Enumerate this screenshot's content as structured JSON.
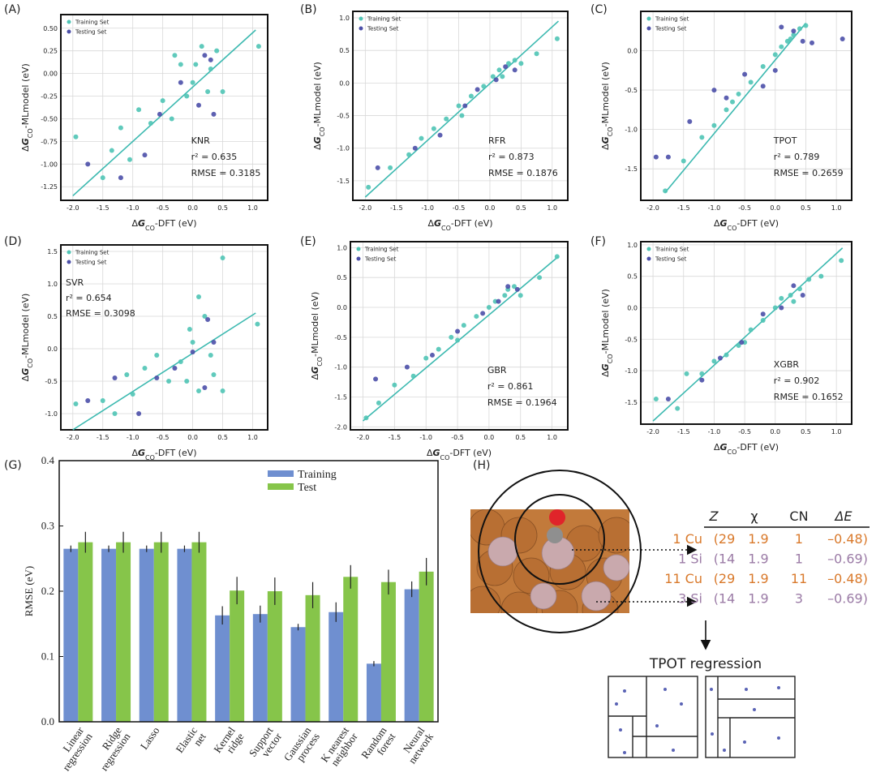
{
  "chart_data": [
    {
      "type": "scatter",
      "panel": "(A)",
      "xlabel": [
        "Δ",
        "G",
        "CO",
        "-DFT (eV)"
      ],
      "ylabel": [
        "Δ",
        "G",
        "CO",
        "-MLmodel (eV)"
      ],
      "annotations": [
        "KNR",
        "r² = 0.635",
        "RMSE = 0.3185"
      ],
      "xlim": [
        -2.2,
        1.25
      ],
      "xticks": [
        {
          "value": -2,
          "label": "-2.0"
        },
        -1.5,
        {
          "value": -1,
          "label": "-1.0"
        },
        -0.5,
        {
          "value": 0,
          "label": "0.0"
        },
        0.5,
        {
          "value": 1,
          "label": "1.0"
        }
      ],
      "ylim": [
        -1.4,
        0.65
      ],
      "yticks": [
        -1.25,
        {
          "value": -1,
          "label": "-1.00"
        },
        -0.75,
        {
          "value": -0.5,
          "label": "-0.50"
        },
        -0.25,
        {
          "value": 0,
          "label": "0.00"
        },
        0.25,
        {
          "value": 0.5,
          "label": "0.50"
        }
      ],
      "grid": true,
      "legend": "upper left",
      "fit": {
        "color": "#3cb9b0",
        "x": [
          -2.0,
          1.05
        ],
        "values": [
          -1.35,
          0.48
        ]
      },
      "series": [
        {
          "name": "Training Set",
          "color": "#4fc4b5",
          "x": [
            -1.95,
            -1.5,
            -1.35,
            -1.2,
            -1.05,
            -0.9,
            -0.7,
            -0.5,
            -0.35,
            -0.2,
            -0.1,
            0.0,
            0.05,
            0.15,
            0.25,
            0.3,
            0.4,
            0.5,
            1.1,
            -0.3
          ],
          "values": [
            -0.7,
            -1.15,
            -0.85,
            -0.6,
            -0.95,
            -0.4,
            -0.55,
            -0.3,
            -0.5,
            0.1,
            -0.25,
            -0.1,
            0.1,
            0.3,
            -0.2,
            0.05,
            0.25,
            -0.2,
            0.3,
            0.2
          ]
        },
        {
          "name": "Testing Set",
          "color": "#4b4fa8",
          "x": [
            -1.75,
            -1.2,
            -0.8,
            -0.55,
            -0.2,
            0.1,
            0.2,
            0.35,
            0.3
          ],
          "values": [
            -1.0,
            -1.15,
            -0.9,
            -0.45,
            -0.1,
            -0.35,
            0.2,
            -0.45,
            0.15
          ]
        }
      ]
    },
    {
      "type": "scatter",
      "panel": "(B)",
      "xlabel": [
        "Δ",
        "G",
        "CO",
        "-DFT (eV)"
      ],
      "ylabel": [
        "Δ",
        "G",
        "CO",
        "-MLmodel (eV)"
      ],
      "annotations": [
        "RFR",
        "r² = 0.873",
        "RMSE = 0.1876"
      ],
      "xlim": [
        -2.2,
        1.25
      ],
      "xticks": [
        {
          "value": -2,
          "label": "-2.0"
        },
        -1.5,
        {
          "value": -1,
          "label": "-1.0"
        },
        -0.5,
        {
          "value": 0,
          "label": "0.0"
        },
        0.5,
        {
          "value": 1,
          "label": "1.0"
        }
      ],
      "ylim": [
        -1.8,
        1.1
      ],
      "yticks": [
        -1.5,
        {
          "value": -1,
          "label": "-1.0"
        },
        -0.5,
        {
          "value": 0,
          "label": "0.0"
        },
        0.5,
        {
          "value": 1,
          "label": "1.0"
        }
      ],
      "grid": true,
      "legend": "upper left",
      "fit": {
        "color": "#3cb9b0",
        "x": [
          -2.0,
          1.1
        ],
        "values": [
          -1.75,
          0.95
        ]
      },
      "series": [
        {
          "name": "Training Set",
          "color": "#4fc4b5",
          "x": [
            -1.95,
            -1.6,
            -1.3,
            -1.1,
            -0.9,
            -0.7,
            -0.5,
            -0.3,
            -0.1,
            0.05,
            0.15,
            0.3,
            0.4,
            0.5,
            0.75,
            1.08,
            -0.45,
            0.2
          ],
          "values": [
            -1.6,
            -1.3,
            -1.1,
            -0.85,
            -0.7,
            -0.55,
            -0.35,
            -0.2,
            -0.05,
            0.1,
            0.2,
            0.3,
            0.35,
            0.3,
            0.45,
            0.68,
            -0.5,
            0.1
          ]
        },
        {
          "name": "Testing Set",
          "color": "#4b4fa8",
          "x": [
            -1.8,
            -1.2,
            -0.8,
            -0.4,
            -0.2,
            0.1,
            0.25,
            0.4
          ],
          "values": [
            -1.3,
            -1.0,
            -0.8,
            -0.35,
            -0.1,
            0.05,
            0.25,
            0.2
          ]
        }
      ]
    },
    {
      "type": "scatter",
      "panel": "(C)",
      "xlabel": [
        "Δ",
        "G",
        "CO",
        "-DFT (eV)"
      ],
      "ylabel": [
        "Δ",
        "G",
        "CO",
        "-MLmodel (eV)"
      ],
      "annotations": [
        "TPOT",
        "r² = 0.789",
        "RMSE = 0.2659"
      ],
      "xlim": [
        -2.2,
        1.25
      ],
      "xticks": [
        {
          "value": -2,
          "label": "-2.0"
        },
        -1.5,
        {
          "value": -1,
          "label": "-1.0"
        },
        -0.5,
        {
          "value": 0,
          "label": "0.0"
        },
        0.5,
        {
          "value": 1,
          "label": "1.0"
        }
      ],
      "ylim": [
        -1.9,
        0.5
      ],
      "yticks": [
        -1.5,
        {
          "value": -1,
          "label": "-1.0"
        },
        -0.5,
        {
          "value": 0,
          "label": "0.0"
        }
      ],
      "grid": true,
      "legend": "upper left",
      "fit": {
        "color": "#3cb9b0",
        "x": [
          -1.8,
          0.5
        ],
        "values": [
          -1.8,
          0.35
        ]
      },
      "series": [
        {
          "name": "Training Set",
          "color": "#4fc4b5",
          "x": [
            -1.8,
            -1.5,
            -1.2,
            -1.0,
            -0.8,
            -0.6,
            -0.4,
            -0.2,
            0.0,
            0.1,
            0.2,
            0.3,
            0.4,
            0.5,
            0.25,
            -0.7
          ],
          "values": [
            -1.78,
            -1.4,
            -1.1,
            -0.95,
            -0.75,
            -0.55,
            -0.4,
            -0.2,
            -0.05,
            0.05,
            0.12,
            0.2,
            0.28,
            0.32,
            0.15,
            -0.65
          ]
        },
        {
          "name": "Testing Set",
          "color": "#4b4fa8",
          "x": [
            -1.95,
            -1.75,
            -1.4,
            -1.0,
            -0.8,
            -0.5,
            -0.2,
            0.0,
            0.1,
            0.3,
            0.6,
            1.1,
            0.45
          ],
          "values": [
            -1.35,
            -1.35,
            -0.9,
            -0.5,
            -0.6,
            -0.3,
            -0.45,
            -0.25,
            0.3,
            0.25,
            0.1,
            0.15,
            0.12
          ]
        }
      ]
    },
    {
      "type": "scatter",
      "panel": "(D)",
      "xlabel": [
        "Δ",
        "G",
        "CO",
        "-DFT (eV)"
      ],
      "ylabel": [
        "Δ",
        "G",
        "CO",
        "-MLmodel (eV)"
      ],
      "annotations": [
        "SVR",
        "r² = 0.654",
        "RMSE = 0.3098"
      ],
      "xlim": [
        -2.2,
        1.25
      ],
      "xticks": [
        {
          "value": -2,
          "label": "-2.0"
        },
        -1.5,
        {
          "value": -1,
          "label": "-1.0"
        },
        -0.5,
        {
          "value": 0,
          "label": "0.0"
        },
        0.5,
        {
          "value": 1,
          "label": "1.0"
        }
      ],
      "ylim": [
        -1.25,
        1.6
      ],
      "yticks": [
        {
          "value": -1,
          "label": "-1.0"
        },
        -0.5,
        {
          "value": 0,
          "label": "0.0"
        },
        0.5,
        {
          "value": 1,
          "label": "1.0"
        },
        1.5
      ],
      "grid": true,
      "legend": "upper left",
      "fit": {
        "color": "#3cb9b0",
        "x": [
          -2.0,
          1.05
        ],
        "values": [
          -1.25,
          0.55
        ]
      },
      "series": [
        {
          "name": "Training Set",
          "color": "#4fc4b5",
          "x": [
            -1.95,
            -1.5,
            -1.3,
            -1.1,
            -1.0,
            -0.8,
            -0.6,
            -0.4,
            -0.2,
            -0.1,
            0.0,
            0.1,
            0.2,
            0.3,
            0.35,
            0.5,
            0.5,
            1.08,
            0.1,
            -0.05
          ],
          "values": [
            -0.85,
            -0.8,
            -1.0,
            -0.4,
            -0.7,
            -0.3,
            -0.1,
            -0.5,
            -0.2,
            -0.5,
            0.1,
            -0.65,
            0.5,
            -0.1,
            -0.4,
            -0.65,
            1.4,
            0.38,
            0.8,
            0.3
          ]
        },
        {
          "name": "Testing Set",
          "color": "#4b4fa8",
          "x": [
            -1.75,
            -1.3,
            -0.9,
            -0.6,
            -0.3,
            0.0,
            0.25,
            0.35,
            0.2
          ],
          "values": [
            -0.8,
            -0.45,
            -1.0,
            -0.45,
            -0.3,
            -0.05,
            0.45,
            0.1,
            -0.6
          ]
        }
      ]
    },
    {
      "type": "scatter",
      "panel": "(E)",
      "xlabel": [
        "Δ",
        "G",
        "CO",
        "-DFT (eV)"
      ],
      "ylabel": [
        "Δ",
        "G",
        "CO",
        "-MLmodel (eV)"
      ],
      "annotations": [
        "GBR",
        "r² = 0.861",
        "RMSE = 0.1964"
      ],
      "xlim": [
        -2.2,
        1.25
      ],
      "xticks": [
        {
          "value": -2,
          "label": "-2.0"
        },
        -1.5,
        {
          "value": -1,
          "label": "-1.0"
        },
        -0.5,
        {
          "value": 0,
          "label": "0.0"
        },
        0.5,
        {
          "value": 1,
          "label": "1.0"
        }
      ],
      "ylim": [
        -2.05,
        1.1
      ],
      "yticks": [
        {
          "value": -2,
          "label": "-2.0"
        },
        -1.5,
        {
          "value": -1,
          "label": "-1.0"
        },
        -0.5,
        {
          "value": 0,
          "label": "0.0"
        },
        0.5,
        {
          "value": 1,
          "label": "1.0"
        }
      ],
      "grid": true,
      "legend": "upper left",
      "fit": {
        "color": "#3cb9b0",
        "x": [
          -2.0,
          1.1
        ],
        "values": [
          -1.9,
          0.85
        ]
      },
      "series": [
        {
          "name": "Training Set",
          "color": "#4fc4b5",
          "x": [
            -1.95,
            -1.75,
            -1.5,
            -1.2,
            -1.0,
            -0.8,
            -0.6,
            -0.4,
            -0.2,
            0.0,
            0.1,
            0.25,
            0.4,
            0.5,
            0.8,
            1.08,
            -0.5,
            0.3
          ],
          "values": [
            -1.85,
            -1.6,
            -1.3,
            -1.15,
            -0.85,
            -0.7,
            -0.5,
            -0.3,
            -0.15,
            0.0,
            0.1,
            0.2,
            0.35,
            0.2,
            0.5,
            0.85,
            -0.55,
            0.3
          ]
        },
        {
          "name": "Testing Set",
          "color": "#4b4fa8",
          "x": [
            -1.8,
            -1.3,
            -0.9,
            -0.5,
            -0.1,
            0.15,
            0.3,
            0.45
          ],
          "values": [
            -1.2,
            -1.0,
            -0.8,
            -0.4,
            -0.1,
            0.1,
            0.35,
            0.3
          ]
        }
      ]
    },
    {
      "type": "scatter",
      "panel": "(F)",
      "xlabel": [
        "Δ",
        "G",
        "CO",
        "-DFT (eV)"
      ],
      "ylabel": [
        "Δ",
        "G",
        "CO",
        "-MLmodel (eV)"
      ],
      "annotations": [
        "XGBR",
        "r² = 0.902",
        "RMSE = 0.1652"
      ],
      "xlim": [
        -2.2,
        1.25
      ],
      "xticks": [
        {
          "value": -2,
          "label": "-2.0"
        },
        -1.5,
        {
          "value": -1,
          "label": "-1.0"
        },
        -0.5,
        {
          "value": 0,
          "label": "0.0"
        },
        0.5,
        {
          "value": 1,
          "label": "1.0"
        }
      ],
      "ylim": [
        -1.85,
        1.05
      ],
      "yticks": [
        -1.5,
        {
          "value": -1,
          "label": "-1.0"
        },
        -0.5,
        {
          "value": 0,
          "label": "0.0"
        },
        0.5,
        {
          "value": 1,
          "label": "1.0"
        }
      ],
      "grid": true,
      "legend": "upper left",
      "fit": {
        "color": "#3cb9b0",
        "x": [
          -2.0,
          1.1
        ],
        "values": [
          -1.8,
          0.95
        ]
      },
      "series": [
        {
          "name": "Training Set",
          "color": "#4fc4b5",
          "x": [
            -1.95,
            -1.6,
            -1.45,
            -1.2,
            -1.0,
            -0.8,
            -0.6,
            -0.4,
            -0.2,
            0.0,
            0.1,
            0.25,
            0.4,
            0.55,
            0.75,
            1.08,
            -0.5,
            0.3
          ],
          "values": [
            -1.45,
            -1.6,
            -1.05,
            -1.05,
            -0.85,
            -0.75,
            -0.6,
            -0.35,
            -0.2,
            0.0,
            0.15,
            0.2,
            0.3,
            0.45,
            0.5,
            0.75,
            -0.55,
            0.1
          ]
        },
        {
          "name": "Testing Set",
          "color": "#4b4fa8",
          "x": [
            -1.75,
            -1.2,
            -0.9,
            -0.55,
            -0.2,
            0.1,
            0.3,
            0.45
          ],
          "values": [
            -1.45,
            -1.15,
            -0.8,
            -0.55,
            -0.1,
            0.0,
            0.35,
            0.2
          ]
        }
      ]
    },
    {
      "type": "bar",
      "panel": "(G)",
      "ylabel": "RMSE (eV)",
      "legend": "upper center",
      "categories": [
        [
          "Linear",
          "regression"
        ],
        [
          "Ridge",
          "regression"
        ],
        [
          "Lasso"
        ],
        [
          "Elastic",
          "net"
        ],
        [
          "Kernel",
          "ridge"
        ],
        [
          "Support",
          "vector"
        ],
        [
          "Gaussian",
          "process"
        ],
        [
          "K nearest",
          "neighbor"
        ],
        [
          "Random",
          "forest"
        ],
        [
          "Neural",
          "network"
        ]
      ],
      "ylim": [
        0,
        0.4
      ],
      "yticks": [
        {
          "value": 0,
          "label": "0.0"
        },
        0.1,
        0.2,
        0.3,
        0.4
      ],
      "series": [
        {
          "name": "Training",
          "color": "#6f8fd0",
          "values": [
            0.265,
            0.265,
            0.265,
            0.265,
            0.163,
            0.165,
            0.145,
            0.168,
            0.089,
            0.203
          ],
          "errors": [
            0.005,
            0.005,
            0.005,
            0.005,
            0.014,
            0.013,
            0.005,
            0.015,
            0.004,
            0.012
          ]
        },
        {
          "name": "Test",
          "color": "#86c54a",
          "values": [
            0.275,
            0.275,
            0.275,
            0.275,
            0.201,
            0.2,
            0.194,
            0.222,
            0.214,
            0.23
          ],
          "errors": [
            0.016,
            0.016,
            0.016,
            0.016,
            0.021,
            0.021,
            0.02,
            0.018,
            0.019,
            0.021
          ]
        }
      ]
    }
  ],
  "diagram": {
    "panel": "(H)",
    "header": [
      "Z",
      "χ",
      "CN",
      "ΔE"
    ],
    "rows": [
      [
        "1 Cu",
        "(29",
        "1.9",
        "1",
        "–0.48)"
      ],
      [
        "1 Si",
        "(14",
        "1.9",
        "1",
        "–0.69)"
      ],
      [
        "11 Cu",
        "(29",
        "1.9",
        "11",
        "–0.48)"
      ],
      [
        "3 Si",
        "(14",
        "1.9",
        "3",
        "–0.69)"
      ]
    ],
    "caption": "TPOT regression"
  }
}
